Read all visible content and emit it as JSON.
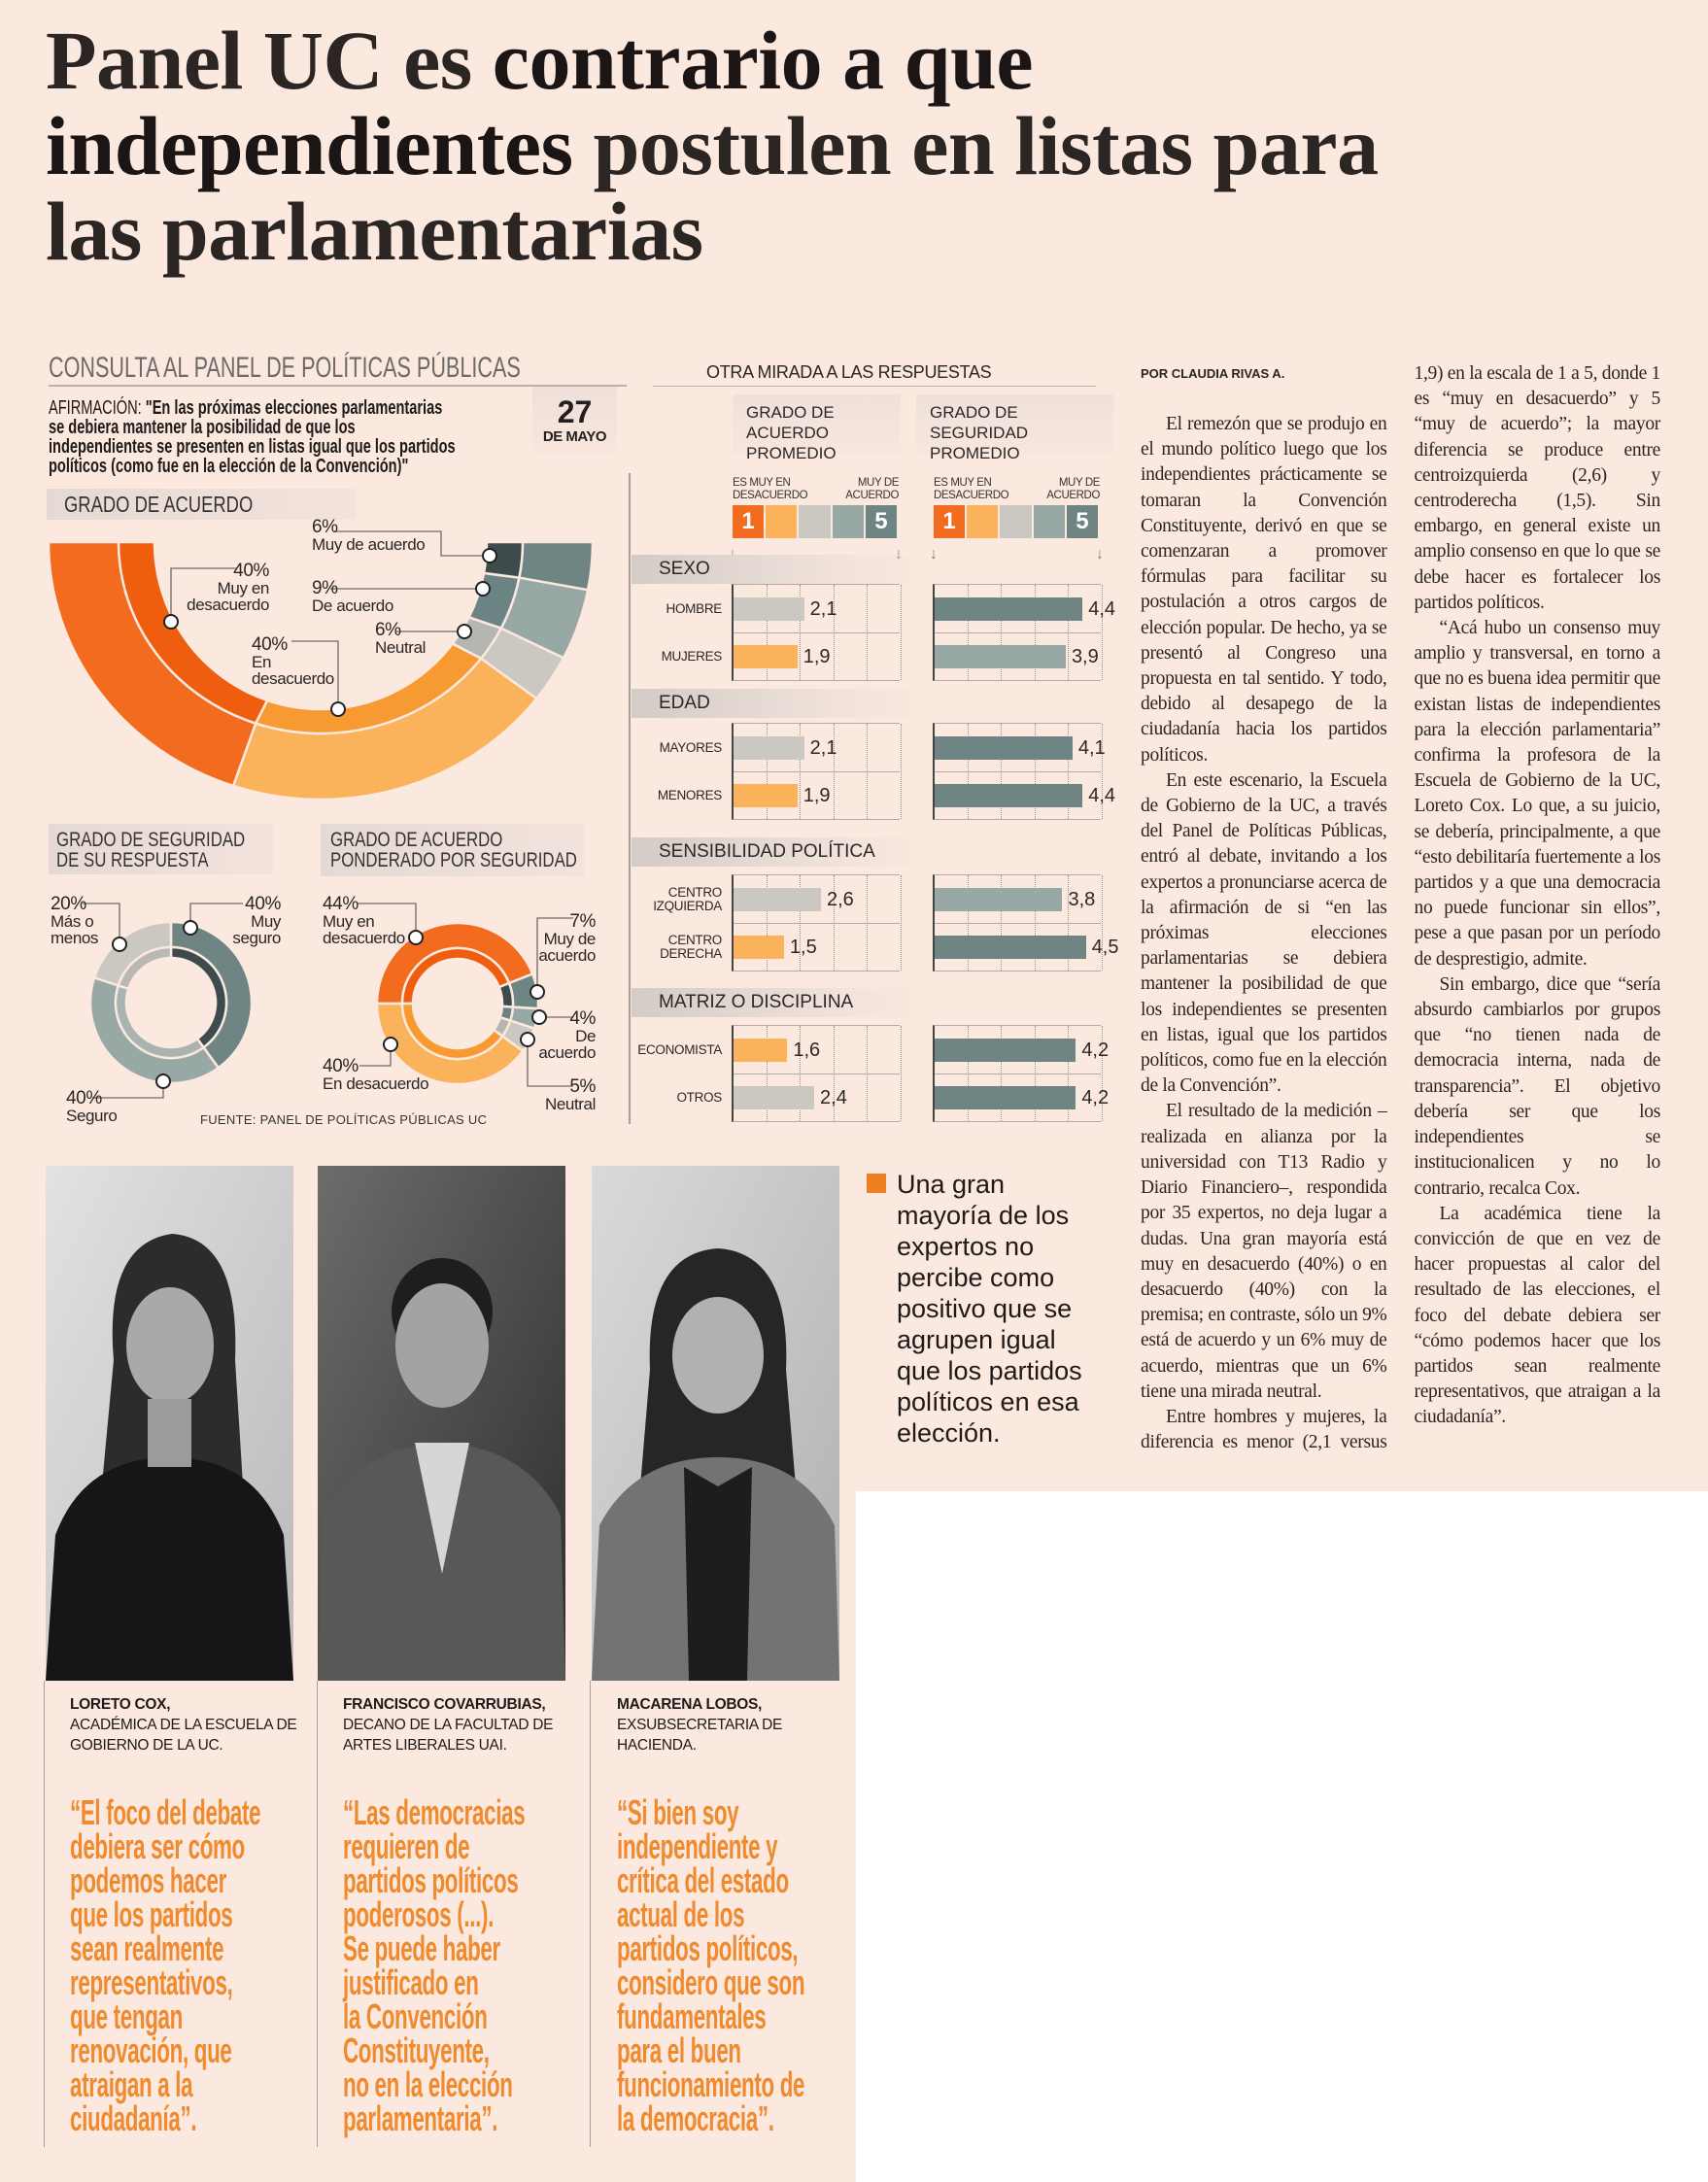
{
  "headline": {
    "part1": "Panel UC es ",
    "bold": "contrario a que independientes",
    "part2": " postulen en listas para las parlamentarias"
  },
  "infographic": {
    "section_title": "CONSULTA AL PANEL DE POLÍTICAS PÚBLICAS",
    "statement_label": "AFIRMACIÓN: ",
    "statement": "\"En las próximas elecciones parlamentarias\nse debiera mantener la posibilidad de que los\nindependientes se presenten en listas igual que los partidos\npolíticos (como fue en la elección de la Convención)\"",
    "date_day": "27",
    "date_month": "DE MAYO",
    "agreement": {
      "title": "GRADO DE ACUERDO",
      "segments": [
        {
          "pct": "40%",
          "value": 40,
          "label": "Muy en desacuerdo",
          "outer": "#f26b1f",
          "inner": "#ee5e0e"
        },
        {
          "pct": "40%",
          "value": 40,
          "label": "En desacuerdo",
          "outer": "#fbb35b",
          "inner": "#f89a32"
        },
        {
          "pct": "6%",
          "value": 6,
          "label": "Neutral",
          "outer": "#cbc8c2",
          "inner": "#b5b6b1"
        },
        {
          "pct": "9%",
          "value": 9,
          "label": "De acuerdo",
          "outer": "#98a8a5",
          "inner": "#6c8383"
        },
        {
          "pct": "6%",
          "value": 6,
          "label": "Muy de acuerdo",
          "outer": "#6e8584",
          "inner": "#3e4b4d"
        }
      ]
    },
    "security": {
      "title": "GRADO DE SEGURIDAD\nDE SU RESPUESTA",
      "segments": [
        {
          "pct": "40%",
          "value": 40,
          "label": "Muy seguro",
          "outer": "#6e8584",
          "inner": "#3e4b4d"
        },
        {
          "pct": "40%",
          "value": 40,
          "label": "Seguro",
          "outer": "#98a8a5",
          "inner": "#a9b4b1"
        },
        {
          "pct": "20%",
          "value": 20,
          "label": "Más o menos",
          "outer": "#cbc8c2",
          "inner": "#b9b8b2"
        }
      ]
    },
    "weighted": {
      "title": "GRADO DE ACUERDO\nPONDERADO POR  SEGURIDAD",
      "segments": [
        {
          "pct": "44%",
          "value": 44,
          "label": "Muy en desacuerdo",
          "outer": "#f26b1f",
          "inner": "#ee5e0e"
        },
        {
          "pct": "7%",
          "value": 7,
          "label": "Muy de acuerdo",
          "outer": "#6e8584",
          "inner": "#3e4b4d"
        },
        {
          "pct": "4%",
          "value": 4,
          "label": "De acuerdo",
          "outer": "#98a8a5",
          "inner": "#6c8383"
        },
        {
          "pct": "5%",
          "value": 5,
          "label": "Neutral",
          "outer": "#cbc8c2",
          "inner": "#b5b6b1"
        },
        {
          "pct": "40%",
          "value": 40,
          "label": "En desacuerdo",
          "outer": "#fbb35b",
          "inner": "#f89a32"
        }
      ]
    },
    "source": "FUENTE: PANEL DE POLÍTICAS PÚBLICAS UC"
  },
  "comparison": {
    "title": "OTRA MIRADA A LAS RESPUESTAS",
    "agreement_header": "GRADO DE ACUERDO PROMEDIO",
    "security_header": "GRADO DE SEGURIDAD PROMEDIO",
    "scale_low": "ES MUY EN DESACUERDO",
    "scale_high": "MUY DE ACUERDO",
    "scale_min": "1",
    "scale_max": "5",
    "scale_colors": [
      "#f26b1f",
      "#fbb35b",
      "#cbc8c2",
      "#98a8a5",
      "#6e8584"
    ],
    "axis_max": 5,
    "groups": [
      {
        "name": "SEXO",
        "rows": [
          {
            "label": "HOMBRE",
            "agreement": 2.1,
            "agreement_label": "2,1",
            "security": 4.4,
            "security_label": "4,4"
          },
          {
            "label": "MUJERES",
            "agreement": 1.9,
            "agreement_label": "1,9",
            "security": 3.9,
            "security_label": "3,9"
          }
        ]
      },
      {
        "name": "EDAD",
        "rows": [
          {
            "label": "MAYORES",
            "agreement": 2.1,
            "agreement_label": "2,1",
            "security": 4.1,
            "security_label": "4,1"
          },
          {
            "label": "MENORES",
            "agreement": 1.9,
            "agreement_label": "1,9",
            "security": 4.4,
            "security_label": "4,4"
          }
        ]
      },
      {
        "name": "SENSIBILIDAD POLÍTICA",
        "rows": [
          {
            "label": "CENTRO IZQUIERDA",
            "agreement": 2.6,
            "agreement_label": "2,6",
            "security": 3.8,
            "security_label": "3,8"
          },
          {
            "label": "CENTRO DERECHA",
            "agreement": 1.5,
            "agreement_label": "1,5",
            "security": 4.5,
            "security_label": "4,5"
          }
        ]
      },
      {
        "name": "MATRIZ O DISCIPLINA",
        "rows": [
          {
            "label": "ECONOMISTA",
            "agreement": 1.6,
            "agreement_label": "1,6",
            "security": 4.2,
            "security_label": "4,2"
          },
          {
            "label": "OTROS",
            "agreement": 2.4,
            "agreement_label": "2,4",
            "security": 4.2,
            "security_label": "4,2"
          }
        ]
      }
    ]
  },
  "experts": [
    {
      "name": "LORETO COX,",
      "role": "ACADÉMICA DE LA ESCUELA DE GOBIERNO DE LA UC.",
      "quote": "“El foco del debate\ndebiera ser cómo\npodemos hacer\nque los partidos\nsean realmente\nrepresentativos,\nque tengan\nrenovación, que\natraigan a la\nciudadanía”."
    },
    {
      "name": "FRANCISCO COVARRUBIAS,",
      "role": "DECANO DE LA FACULTAD DE ARTES LIBERALES UAI.",
      "quote": "“Las democracias\nrequieren de\npartidos políticos\npoderosos (...).\nSe puede haber\njustificado en\nla Convención\nConstituyente,\nno en la elección\nparlamentaria”."
    },
    {
      "name": "MACARENA LOBOS,",
      "role": "EXSUBSECRETARIA DE HACIENDA.",
      "quote": "“Si bien soy\nindependiente y\ncrítica del estado\nactual de los\npartidos políticos,\nconsidero que son\nfundamentales\npara el buen\nfuncionamiento de\nla democracia”."
    }
  ],
  "pull_quote": "Una gran\nmayoría de los\nexpertos no\npercibe como\npositivo que se\nagrupen igual\nque los partidos\npolíticos en esa\nelección.",
  "article": {
    "byline": "POR CLAUDIA RIVAS A.",
    "paragraphs": [
      "El remezón que se produjo en el mundo político luego que los independientes prácticamente se tomaran la Convención Constituyente, derivó en que se comenzaran a promover fórmulas para facilitar su postulación a otros cargos de elección popular. De hecho, ya se presentó al Congreso una propuesta en tal sentido. Y todo, debido al desapego de la ciudadanía hacia los partidos políticos.",
      "En este escenario, la Escuela de Gobierno de la UC, a través del Panel de Políticas Públicas, entró al debate, invitando a los expertos a pronunciarse acerca de la afirmación de si “en las próximas elecciones parlamentarias se debiera mantener la posibilidad de que los independientes se presenten en listas, igual que los partidos políticos, como fue en la elección de la Convención”.",
      "El resultado de la medición –realizada en alianza por la universidad con T13 Radio y Diario Financiero–, respondida por 35 expertos, no deja lugar a dudas. Una gran mayoría está muy en desacuerdo (40%) o en desacuerdo (40%) con la premisa; en contraste, sólo un 9% está de acuerdo y un 6% muy de acuerdo, mientras que un 6% tiene una mirada neutral.",
      "Entre hombres y mujeres, la diferencia es menor (2,1 versus 1,9) en la escala de 1 a 5, donde 1 es “muy en desacuerdo” y 5 “muy de acuerdo”; la mayor diferencia se produce entre centroizquierda (2,6) y centroderecha (1,5). Sin embargo, en general existe un amplio consenso en que lo que se debe hacer es fortalecer los partidos políticos.",
      "“Acá hubo un consenso muy amplio y transversal, en torno a que no es buena idea permitir que existan listas de independientes para la elección parlamentaria” confirma la profesora de la Escuela de Gobierno de la UC, Loreto Cox. Lo que, a su juicio, se debería, principalmente, a que “esto debilitaría fuertemente a los partidos y a que una democracia no puede funcionar sin ellos”, pese a que pasan por un período de desprestigio, admite.",
      "Sin embargo, dice que “sería absurdo cambiarlos por grupos que “no tienen nada de democracia interna, nada de transparencia”. El objetivo debería ser que los independientes se institucionalicen y no lo contrario, recalca Cox.",
      "La académica tiene la convicción de que en vez de hacer propuestas al calor del resultado de las elecciones, el foco del debate debiera ser “cómo podemos hacer que los partidos sean realmente representativos, que atraigan a la ciudadanía”."
    ]
  }
}
